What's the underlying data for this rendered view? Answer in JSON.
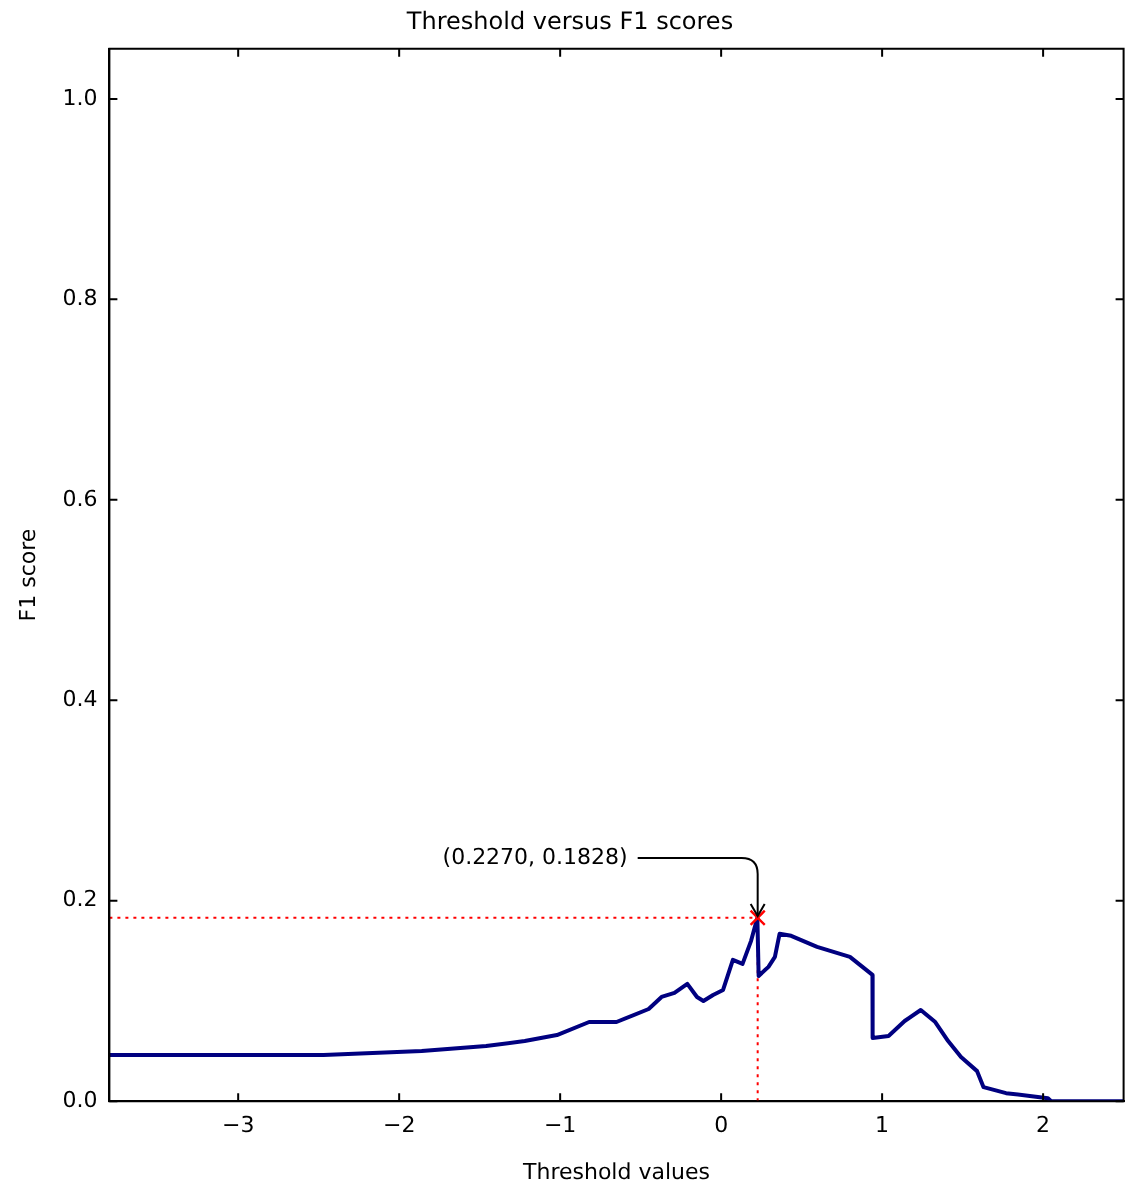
{
  "chart_data": {
    "type": "line",
    "title": "Threshold versus F1 scores",
    "xlabel": "Threshold values",
    "ylabel": "F1 score",
    "xlim": [
      -3.8,
      2.5
    ],
    "ylim": [
      0,
      1.05
    ],
    "xticks": [
      {
        "value": -3,
        "label": "−3"
      },
      {
        "value": -2,
        "label": "−2"
      },
      {
        "value": -1,
        "label": "−1"
      },
      0,
      1,
      2
    ],
    "yticks": [
      {
        "value": 0,
        "label": "0.0"
      },
      0.2,
      0.4,
      0.6,
      0.8,
      {
        "value": 1,
        "label": "1.0"
      }
    ],
    "grid": false,
    "legend": false,
    "marker": "none",
    "line_style": "solid",
    "series": [
      {
        "color": "#000080",
        "x": [
          -3.8,
          -2.47,
          -1.86,
          -1.46,
          -1.22,
          -1.02,
          -0.82,
          -0.65,
          -0.45,
          -0.37,
          -0.29,
          -0.21,
          -0.15,
          -0.11,
          -0.05,
          0.012,
          0.073,
          0.133,
          0.186,
          0.225,
          0.233,
          0.294,
          0.334,
          0.363,
          0.435,
          0.596,
          0.8,
          0.94,
          0.941,
          1.04,
          1.14,
          1.24,
          1.33,
          1.41,
          1.49,
          1.59,
          1.63,
          1.77,
          1.93,
          2.03,
          2.05,
          2.5
        ],
        "values": [
          0.046,
          0.046,
          0.05,
          0.055,
          0.06,
          0.066,
          0.079,
          0.079,
          0.092,
          0.104,
          0.108,
          0.117,
          0.104,
          0.1,
          0.106,
          0.111,
          0.141,
          0.137,
          0.16,
          0.183,
          0.125,
          0.134,
          0.144,
          0.167,
          0.165,
          0.154,
          0.144,
          0.126,
          0.063,
          0.065,
          0.08,
          0.091,
          0.079,
          0.06,
          0.044,
          0.03,
          0.014,
          0.008,
          0.005,
          0.003,
          0,
          0
        ]
      },
      {
        "type": "scatter",
        "marker": "cross",
        "color": "#ff0000",
        "x": [
          0.227
        ],
        "values": [
          0.183
        ]
      }
    ],
    "ref_lines": [
      {
        "axis": "y",
        "value": 0.183,
        "color": "#ff0000",
        "line_style": "dotted"
      },
      {
        "axis": "x",
        "value": 0.227,
        "color": "#ff0000",
        "line_style": "dotted"
      }
    ],
    "annotations": [
      {
        "text": "(0.2270, 0.1828)",
        "x": 0.227,
        "y": 0.1828
      }
    ]
  }
}
